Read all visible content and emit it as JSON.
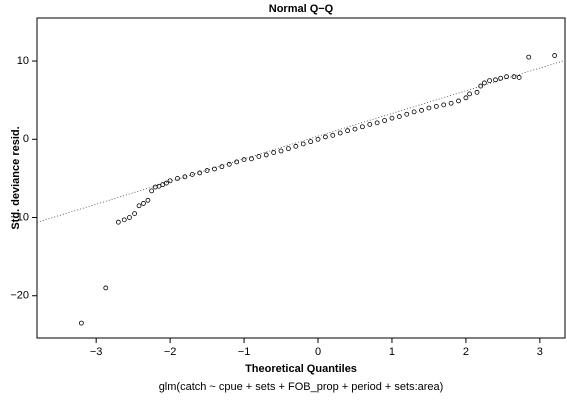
{
  "chart_data": {
    "type": "scatter",
    "title": "Normal Q−Q",
    "x_label": "Theoretical Quantiles",
    "y_label": "Std. deviance resid.",
    "subtitle": "glm(catch ~ cpue + sets + FOB_prop + period + sets:area)",
    "xlim": [
      -3.8,
      3.34
    ],
    "ylim": [
      -25.4,
      15.5
    ],
    "xticks": [
      {
        "value": -3,
        "label": "−3"
      },
      {
        "value": -2,
        "label": "−2"
      },
      {
        "value": -1,
        "label": "−1"
      },
      0,
      1,
      2,
      3
    ],
    "yticks": [
      {
        "value": -20,
        "label": "−20"
      },
      {
        "value": -10,
        "label": "−10"
      },
      0,
      10
    ],
    "color": "#000000",
    "reference_line": {
      "intercept": 0.4,
      "slope": 2.9
    },
    "x": [
      -3.2,
      -2.87,
      -2.7,
      -2.62,
      -2.55,
      -2.48,
      -2.42,
      -2.36,
      -2.3,
      -2.25,
      -2.2,
      -2.15,
      -2.1,
      -2.05,
      -2.0,
      -1.9,
      -1.8,
      -1.7,
      -1.6,
      -1.5,
      -1.4,
      -1.3,
      -1.2,
      -1.1,
      -1.0,
      -0.9,
      -0.8,
      -0.7,
      -0.6,
      -0.5,
      -0.4,
      -0.3,
      -0.2,
      -0.1,
      0,
      0.1,
      0.2,
      0.3,
      0.4,
      0.5,
      0.6,
      0.7,
      0.8,
      0.9,
      1.0,
      1.1,
      1.2,
      1.3,
      1.4,
      1.5,
      1.6,
      1.7,
      1.8,
      1.9,
      2.0,
      2.05,
      2.15,
      2.2,
      2.25,
      2.32,
      2.4,
      2.47,
      2.55,
      2.65,
      2.72,
      2.85,
      3.2
    ],
    "y": [
      -23.5,
      -19,
      -10.6,
      -10.3,
      -10,
      -9.5,
      -8.5,
      -8.2,
      -7.8,
      -6.6,
      -6.1,
      -6,
      -5.8,
      -5.6,
      -5.3,
      -5.0,
      -4.8,
      -4.5,
      -4.3,
      -4.0,
      -3.8,
      -3.5,
      -3.2,
      -2.9,
      -2.6,
      -2.5,
      -2.2,
      -2.0,
      -1.7,
      -1.5,
      -1.2,
      -0.9,
      -0.6,
      -0.3,
      0,
      0.3,
      0.5,
      0.8,
      1.1,
      1.3,
      1.6,
      1.9,
      2.1,
      2.4,
      2.7,
      2.9,
      3.2,
      3.5,
      3.7,
      4.0,
      4.2,
      4.4,
      4.6,
      4.9,
      5.3,
      5.8,
      6,
      6.8,
      7.2,
      7.5,
      7.6,
      7.8,
      8,
      8,
      7.9,
      10.5,
      10.7
    ]
  }
}
